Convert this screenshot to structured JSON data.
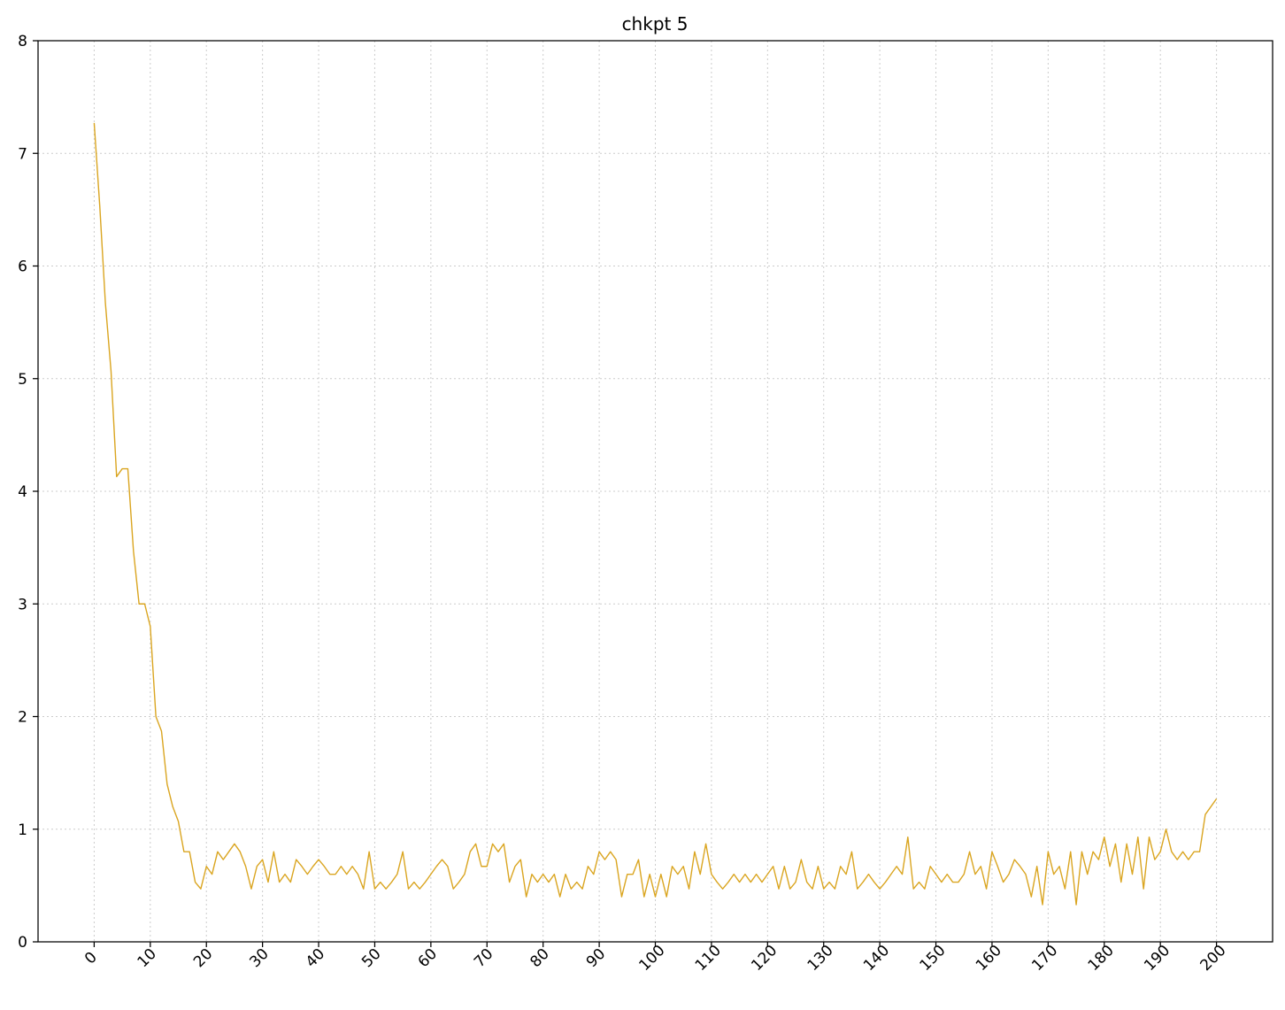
{
  "chart_data": {
    "type": "line",
    "title": "chkpt 5",
    "xlabel": "",
    "ylabel": "",
    "xlim": [
      -10,
      210
    ],
    "ylim": [
      0,
      8
    ],
    "grid": true,
    "grid_style": "dotted",
    "legend": "none",
    "x_ticks": [
      "0",
      "10",
      "20",
      "30",
      "40",
      "50",
      "60",
      "70",
      "80",
      "90",
      "100",
      "110",
      "120",
      "130",
      "140",
      "150",
      "160",
      "170",
      "180",
      "190",
      "200"
    ],
    "y_ticks": [
      "0",
      "1",
      "2",
      "3",
      "4",
      "5",
      "6",
      "7",
      "8"
    ],
    "colors": {
      "line": "#DAA520",
      "grid": "#cccccc",
      "axes": "#000000"
    },
    "series": [
      {
        "x": [
          0,
          1,
          2,
          3,
          4,
          5,
          6,
          7,
          8,
          9,
          10,
          11,
          12,
          13,
          14,
          15,
          16,
          17,
          18,
          19,
          20,
          21,
          22,
          23,
          24,
          25,
          26,
          27,
          28,
          29,
          30,
          31,
          32,
          33,
          34,
          35,
          36,
          37,
          38,
          39,
          40,
          41,
          42,
          43,
          44,
          45,
          46,
          47,
          48,
          49,
          50,
          51,
          52,
          53,
          54,
          55,
          56,
          57,
          58,
          59,
          60,
          61,
          62,
          63,
          64,
          65,
          66,
          67,
          68,
          69,
          70,
          71,
          72,
          73,
          74,
          75,
          76,
          77,
          78,
          79,
          80,
          81,
          82,
          83,
          84,
          85,
          86,
          87,
          88,
          89,
          90,
          91,
          92,
          93,
          94,
          95,
          96,
          97,
          98,
          99,
          100,
          101,
          102,
          103,
          104,
          105,
          106,
          107,
          108,
          109,
          110,
          111,
          112,
          113,
          114,
          115,
          116,
          117,
          118,
          119,
          120,
          121,
          122,
          123,
          124,
          125,
          126,
          127,
          128,
          129,
          130,
          131,
          132,
          133,
          134,
          135,
          136,
          137,
          138,
          139,
          140,
          141,
          142,
          143,
          144,
          145,
          146,
          147,
          148,
          149,
          150,
          151,
          152,
          153,
          154,
          155,
          156,
          157,
          158,
          159,
          160,
          161,
          162,
          163,
          164,
          165,
          166,
          167,
          168,
          169,
          170,
          171,
          172,
          173,
          174,
          175,
          176,
          177,
          178,
          179,
          180,
          181,
          182,
          183,
          184,
          185,
          186,
          187,
          188,
          189,
          190,
          191,
          192,
          193,
          194,
          195,
          196,
          197,
          198,
          199,
          200
        ],
        "values": [
          7.27,
          6.53,
          5.67,
          5.07,
          4.13,
          4.2,
          4.2,
          3.47,
          3.0,
          3.0,
          2.8,
          2.0,
          1.87,
          1.4,
          1.2,
          1.07,
          0.8,
          0.8,
          0.53,
          0.47,
          0.67,
          0.6,
          0.8,
          0.73,
          0.8,
          0.87,
          0.8,
          0.67,
          0.47,
          0.67,
          0.73,
          0.53,
          0.8,
          0.53,
          0.6,
          0.53,
          0.73,
          0.67,
          0.6,
          0.67,
          0.73,
          0.67,
          0.6,
          0.6,
          0.67,
          0.6,
          0.67,
          0.6,
          0.47,
          0.8,
          0.47,
          0.53,
          0.47,
          0.53,
          0.6,
          0.8,
          0.47,
          0.53,
          0.47,
          0.53,
          0.6,
          0.67,
          0.73,
          0.67,
          0.47,
          0.53,
          0.6,
          0.8,
          0.87,
          0.67,
          0.67,
          0.87,
          0.8,
          0.87,
          0.53,
          0.67,
          0.73,
          0.4,
          0.6,
          0.53,
          0.6,
          0.53,
          0.6,
          0.4,
          0.6,
          0.47,
          0.53,
          0.47,
          0.67,
          0.6,
          0.8,
          0.73,
          0.8,
          0.73,
          0.4,
          0.6,
          0.6,
          0.73,
          0.4,
          0.6,
          0.4,
          0.6,
          0.4,
          0.67,
          0.6,
          0.67,
          0.47,
          0.8,
          0.6,
          0.87,
          0.6,
          0.53,
          0.47,
          0.53,
          0.6,
          0.53,
          0.6,
          0.53,
          0.6,
          0.53,
          0.6,
          0.67,
          0.47,
          0.67,
          0.47,
          0.53,
          0.73,
          0.53,
          0.47,
          0.67,
          0.47,
          0.53,
          0.47,
          0.67,
          0.6,
          0.8,
          0.47,
          0.53,
          0.6,
          0.53,
          0.47,
          0.53,
          0.6,
          0.67,
          0.6,
          0.93,
          0.47,
          0.53,
          0.47,
          0.67,
          0.6,
          0.53,
          0.6,
          0.53,
          0.53,
          0.6,
          0.8,
          0.6,
          0.67,
          0.47,
          0.8,
          0.67,
          0.53,
          0.6,
          0.73,
          0.67,
          0.6,
          0.4,
          0.67,
          0.33,
          0.8,
          0.6,
          0.67,
          0.47,
          0.8,
          0.33,
          0.8,
          0.6,
          0.8,
          0.73,
          0.93,
          0.67,
          0.87,
          0.53,
          0.87,
          0.6,
          0.93,
          0.47,
          0.93,
          0.73,
          0.8,
          1.0,
          0.8,
          0.73,
          0.8,
          0.73,
          0.8,
          0.8,
          1.13,
          1.2,
          1.27
        ]
      }
    ]
  }
}
